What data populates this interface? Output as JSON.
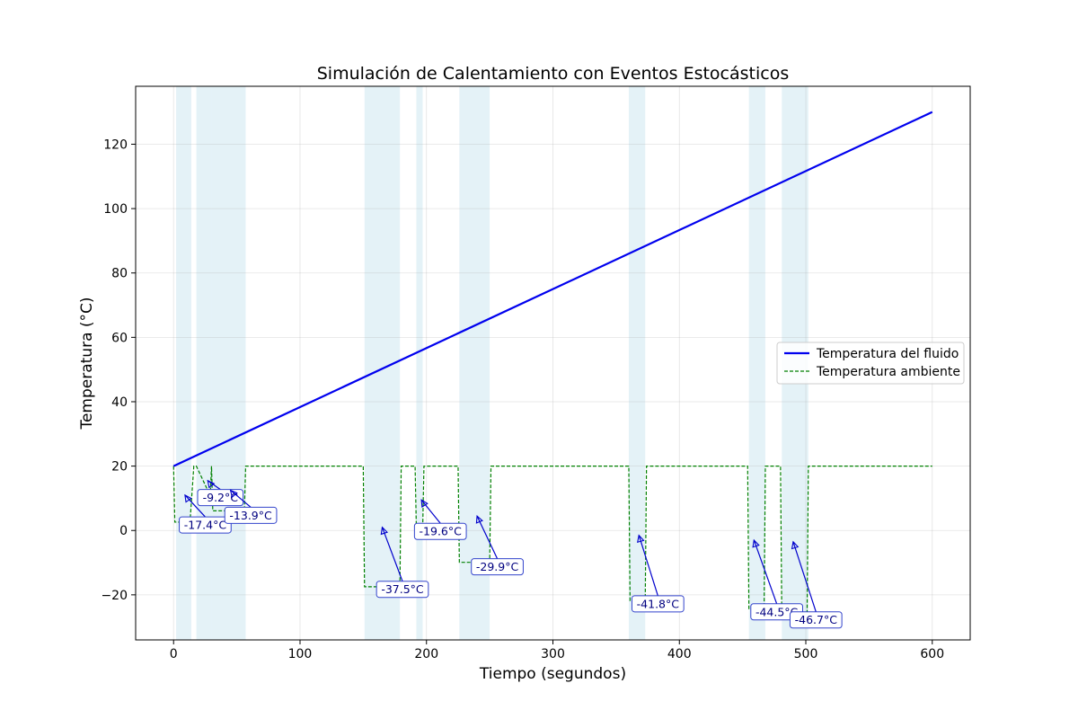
{
  "chart_data": {
    "type": "line",
    "title": "Simulación de Calentamiento con Eventos Estocásticos",
    "xlabel": "Tiempo (segundos)",
    "ylabel": "Temperatura (°C)",
    "xlim": [
      -30,
      630
    ],
    "ylim": [
      -34,
      138
    ],
    "xticks": [
      0,
      100,
      200,
      300,
      400,
      500,
      600
    ],
    "yticks": [
      -20,
      0,
      20,
      40,
      60,
      80,
      100,
      120
    ],
    "grid": true,
    "legend_position": "center-right",
    "colors": {
      "fluid": "#0000ee",
      "ambient": "#008000",
      "event_band": "#add8e6",
      "annotation": "#0000cc",
      "annotation_border": "#3344cc"
    },
    "series": [
      {
        "name": "Temperatura del fluido",
        "style": "solid",
        "x": [
          0,
          600
        ],
        "y": [
          20,
          130
        ]
      },
      {
        "name": "Temperatura ambiente",
        "style": "dashed",
        "x": [
          0,
          1,
          13,
          16,
          18,
          29,
          30,
          31,
          56,
          57,
          150,
          151,
          179,
          180,
          191,
          192,
          197,
          198,
          225,
          226,
          250,
          251,
          360,
          361,
          373,
          374,
          454,
          455,
          467,
          468,
          480,
          481,
          501,
          502,
          600
        ],
        "y": [
          20,
          2.6,
          2.6,
          20,
          20,
          10.8,
          20,
          6.1,
          6.1,
          20,
          20,
          -17.5,
          -17.5,
          20,
          20,
          0.4,
          0.4,
          20,
          20,
          -9.9,
          -9.9,
          20,
          20,
          -21.8,
          -21.8,
          20,
          20,
          -24.5,
          -24.5,
          20,
          20,
          -26.7,
          -26.7,
          20,
          20
        ]
      }
    ],
    "event_bands": [
      [
        2,
        14
      ],
      [
        18,
        30
      ],
      [
        30,
        57
      ],
      [
        151,
        179
      ],
      [
        192,
        197
      ],
      [
        226,
        250
      ],
      [
        360,
        373
      ],
      [
        455,
        468
      ],
      [
        481,
        502
      ]
    ],
    "annotations": [
      {
        "text": "-17.4°C",
        "point": [
          9,
          11
        ],
        "label": [
          25,
          2
        ]
      },
      {
        "text": "-9.2°C",
        "point": [
          27,
          15.5
        ],
        "label": [
          37,
          10.5
        ]
      },
      {
        "text": "-13.9°C",
        "point": [
          45,
          12.5
        ],
        "label": [
          61,
          5
        ]
      },
      {
        "text": "-37.5°C",
        "point": [
          165,
          1
        ],
        "label": [
          181,
          -18
        ]
      },
      {
        "text": "-19.6°C",
        "point": [
          196,
          9.5
        ],
        "label": [
          211,
          0
        ]
      },
      {
        "text": "-29.9°C",
        "point": [
          240,
          4.5
        ],
        "label": [
          256,
          -11
        ]
      },
      {
        "text": "-41.8°C",
        "point": [
          368,
          -1.5
        ],
        "label": [
          383,
          -22.5
        ]
      },
      {
        "text": "-44.5°C",
        "point": [
          459,
          -3
        ],
        "label": [
          477,
          -25
        ]
      },
      {
        "text": "-46.7°C",
        "point": [
          490,
          -3.5
        ],
        "label": [
          508,
          -27.5
        ]
      }
    ]
  }
}
